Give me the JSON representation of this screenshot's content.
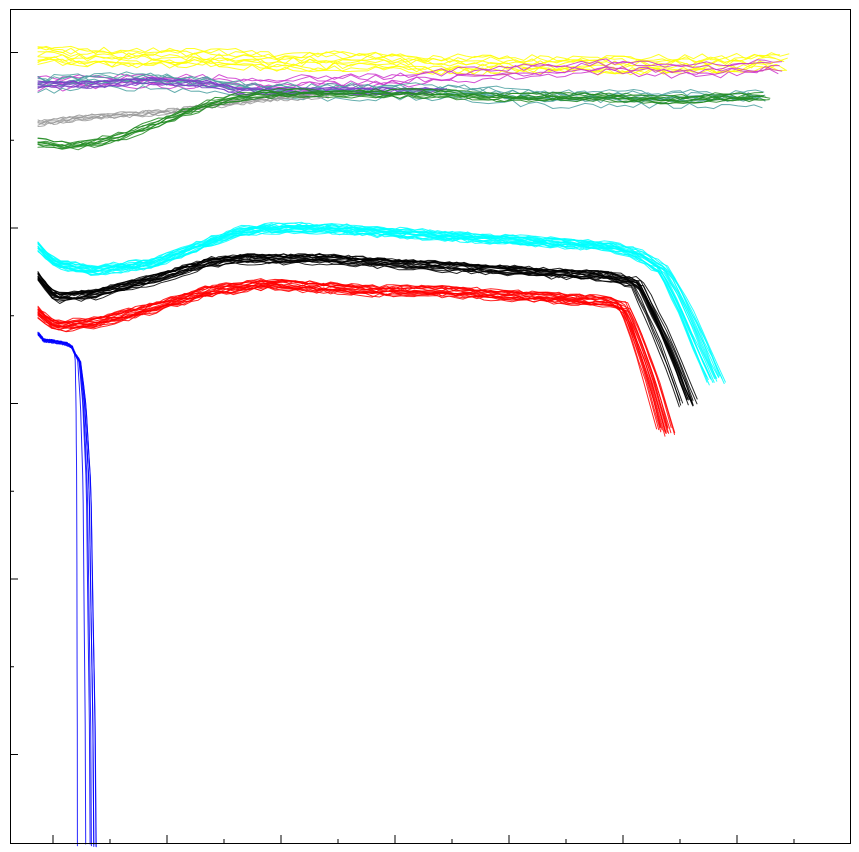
{
  "chart_data": {
    "type": "line",
    "title": "",
    "xlabel": "",
    "ylabel": "",
    "xlim": [
      0,
      14
    ],
    "ylim": [
      -0.15,
      1.05
    ],
    "x_ticks_major": [
      0.2,
      2.2,
      4.2,
      6.2,
      8.2,
      10.2,
      12.2
    ],
    "x_ticks_minor": [
      1.2,
      3.2,
      5.2,
      7.2,
      9.2,
      11.2,
      13.2
    ],
    "y_ticks_major": [
      0.0,
      0.25,
      0.5,
      0.75,
      1.0
    ],
    "y_ticks_minor": [
      0.125,
      0.375,
      0.625,
      0.875
    ],
    "tick_labels_visible": false,
    "grid": false,
    "legend": "none",
    "series": [
      {
        "color": "#ffff00",
        "noise": 0.012,
        "count": 10,
        "x": [
          0,
          1,
          2,
          3,
          4,
          5,
          6,
          7,
          8,
          9,
          10,
          11,
          12,
          13
        ],
        "values": [
          1.0,
          0.995,
          0.995,
          0.995,
          0.99,
          0.99,
          0.99,
          0.985,
          0.985,
          0.985,
          0.985,
          0.985,
          0.985,
          0.99
        ]
      },
      {
        "color": "#cc33cc",
        "noise": 0.01,
        "count": 5,
        "x": [
          0,
          2,
          4,
          6,
          7,
          8,
          9,
          10,
          11,
          12,
          13
        ],
        "values": [
          0.955,
          0.96,
          0.955,
          0.96,
          0.965,
          0.97,
          0.975,
          0.98,
          0.975,
          0.975,
          0.98
        ]
      },
      {
        "color": "#4aa0a0",
        "noise": 0.01,
        "count": 8,
        "x": [
          0,
          1,
          2,
          3,
          4,
          5,
          6,
          7,
          8,
          9,
          10,
          11,
          12,
          12.7
        ],
        "values": [
          0.955,
          0.96,
          0.96,
          0.955,
          0.945,
          0.945,
          0.945,
          0.945,
          0.94,
          0.935,
          0.935,
          0.935,
          0.935,
          0.935
        ]
      },
      {
        "color": "#7a3fc8",
        "noise": 0.004,
        "count": 6,
        "x": [
          0,
          1,
          2,
          3,
          3.5,
          4,
          5,
          6,
          7
        ],
        "values": [
          0.955,
          0.955,
          0.96,
          0.955,
          0.945,
          0.945,
          0.945,
          0.945,
          0.945
        ]
      },
      {
        "color": "#999999",
        "noise": 0.004,
        "count": 6,
        "x": [
          0,
          0.5,
          1,
          1.5,
          2,
          2.5,
          3,
          3.5,
          4,
          5
        ],
        "values": [
          0.9,
          0.905,
          0.91,
          0.912,
          0.915,
          0.918,
          0.925,
          0.93,
          0.935,
          0.94
        ]
      },
      {
        "color": "#228b22",
        "noise": 0.006,
        "count": 9,
        "x": [
          0,
          0.5,
          1,
          1.5,
          2,
          2.5,
          3,
          3.5,
          4,
          5,
          6,
          7,
          8,
          9,
          10,
          11,
          12,
          12.7
        ],
        "values": [
          0.87,
          0.865,
          0.87,
          0.88,
          0.895,
          0.91,
          0.925,
          0.935,
          0.94,
          0.94,
          0.94,
          0.94,
          0.935,
          0.935,
          0.935,
          0.93,
          0.935,
          0.935
        ]
      },
      {
        "color": "#00ffff",
        "noise": 0.006,
        "count": 20,
        "x": [
          0,
          0.3,
          1,
          2,
          3,
          3.5,
          4,
          5,
          6,
          7,
          8,
          9,
          10,
          10.5,
          11,
          11.3,
          11.6,
          11.9
        ],
        "values": [
          0.725,
          0.7,
          0.69,
          0.7,
          0.73,
          0.745,
          0.75,
          0.75,
          0.745,
          0.74,
          0.735,
          0.73,
          0.725,
          0.715,
          0.69,
          0.645,
          0.59,
          0.535
        ]
      },
      {
        "color": "#000000",
        "noise": 0.006,
        "count": 18,
        "x": [
          0,
          0.3,
          1,
          2,
          3,
          3.5,
          4,
          5,
          6,
          7,
          8,
          9,
          10,
          10.5,
          10.8,
          11.1,
          11.4
        ],
        "values": [
          0.68,
          0.65,
          0.655,
          0.675,
          0.7,
          0.705,
          0.705,
          0.705,
          0.7,
          0.695,
          0.69,
          0.685,
          0.68,
          0.67,
          0.62,
          0.565,
          0.5
        ]
      },
      {
        "color": "#ff0000",
        "noise": 0.006,
        "count": 18,
        "x": [
          0,
          0.3,
          1,
          2,
          3,
          3.5,
          4,
          5,
          6,
          7,
          8,
          9,
          10,
          10.3,
          10.6,
          10.8,
          11
        ],
        "values": [
          0.63,
          0.61,
          0.615,
          0.635,
          0.66,
          0.665,
          0.67,
          0.665,
          0.66,
          0.66,
          0.655,
          0.65,
          0.645,
          0.635,
          0.57,
          0.52,
          0.46
        ]
      },
      {
        "color": "#0000ff",
        "noise": 0.002,
        "count": 8,
        "x": [
          0,
          0.1,
          0.3,
          0.5,
          0.6,
          0.7,
          0.75,
          0.8,
          0.82,
          0.84,
          0.85
        ],
        "values": [
          0.6,
          0.59,
          0.588,
          0.585,
          0.58,
          0.56,
          0.5,
          0.38,
          0.2,
          0.05,
          -0.13
        ]
      }
    ]
  }
}
